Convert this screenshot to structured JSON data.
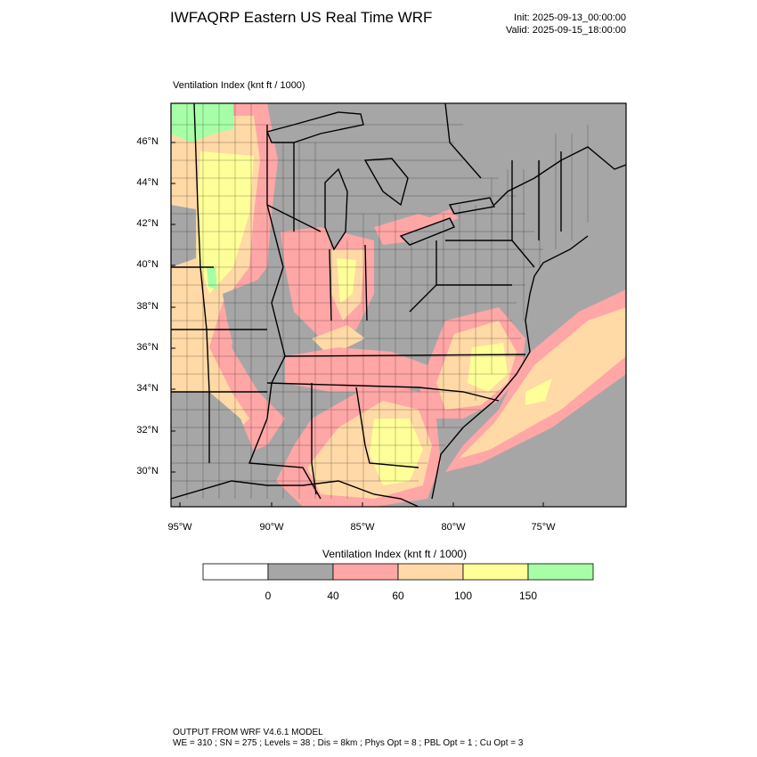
{
  "header": {
    "title": "IWFAQRP Eastern US Real Time WRF",
    "init": "Init: 2025-09-13_00:00:00",
    "valid": "Valid: 2025-09-15_18:00:00"
  },
  "map": {
    "field_label": "Ventilation Index   (knt ft / 1000)",
    "lat_ticks": [
      "46°N",
      "44°N",
      "42°N",
      "40°N",
      "38°N",
      "36°N",
      "34°N",
      "32°N",
      "30°N"
    ],
    "lon_ticks": [
      "95°W",
      "90°W",
      "85°W",
      "80°W",
      "75°W"
    ]
  },
  "colorbar": {
    "title": "Ventilation Index  (knt ft / 1000)",
    "colors": [
      "#ffffff",
      "#a6a6a6",
      "#ffa6a6",
      "#ffd9a6",
      "#ffff99",
      "#a6ffa6"
    ],
    "labels": [
      "0",
      "40",
      "60",
      "100",
      "150"
    ]
  },
  "footer": {
    "line1": "OUTPUT FROM WRF V4.6.1 MODEL",
    "line2": "WE = 310 ; SN = 275 ; Levels = 38 ; Dis = 8km ; Phys Opt = 8 ; PBL Opt = 1 ; Cu Opt = 3"
  }
}
